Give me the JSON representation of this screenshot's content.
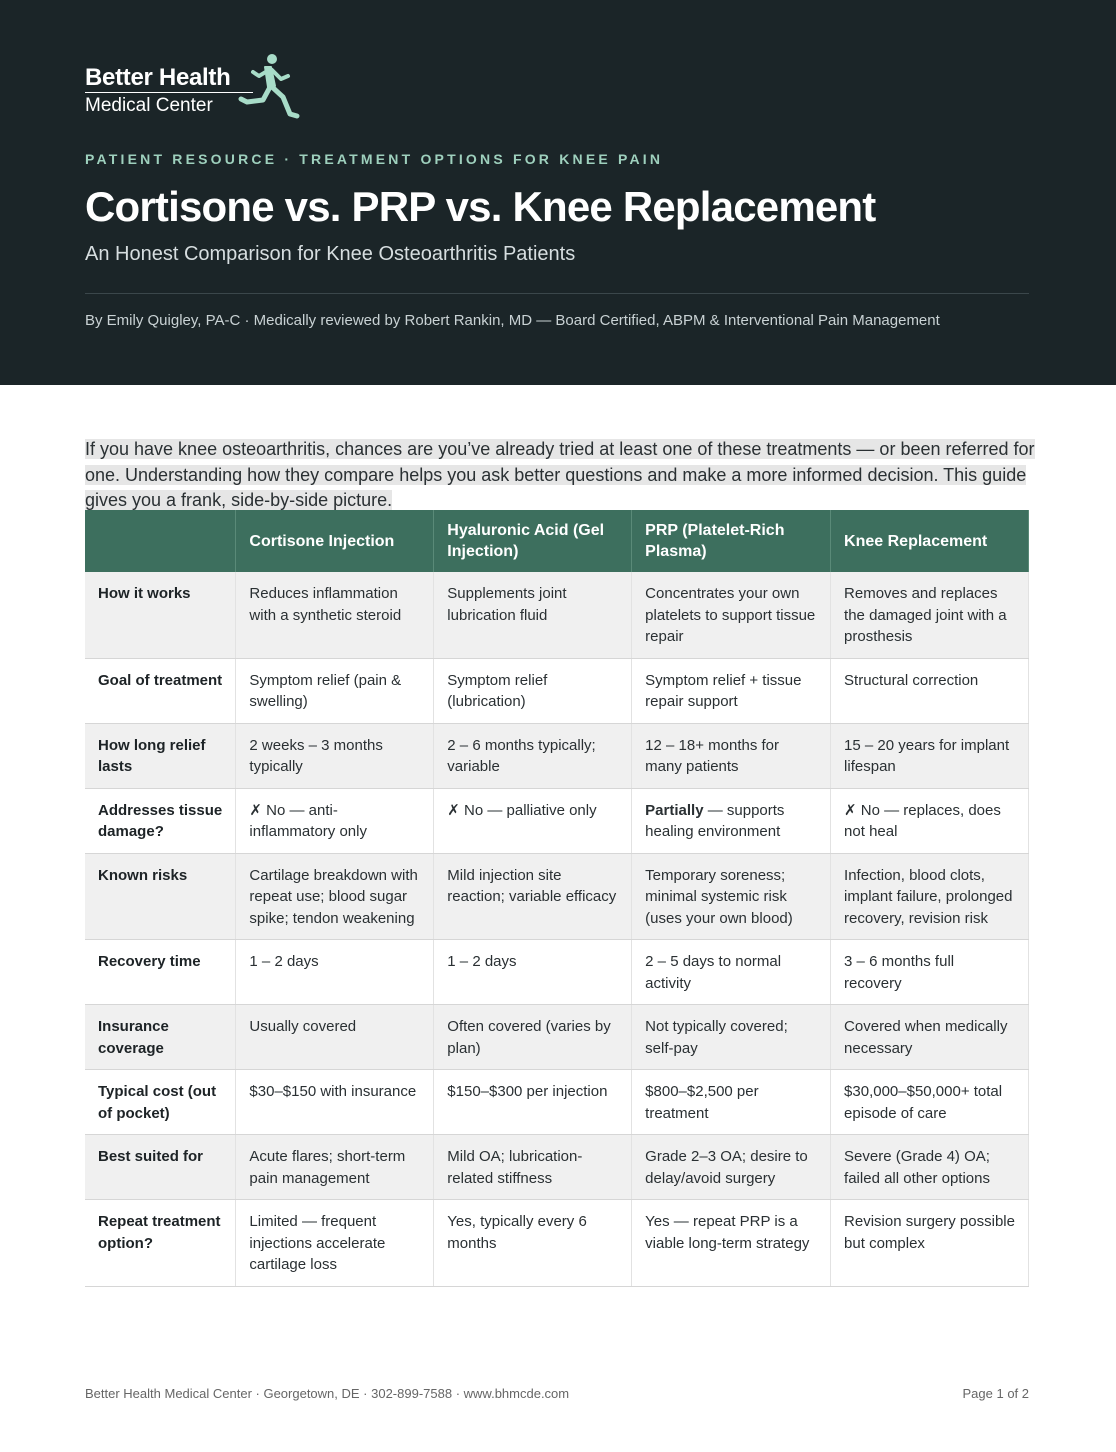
{
  "header": {
    "logo": {
      "name": "Better Health",
      "subtitle": "Medical Center"
    },
    "kicker": "PATIENT RESOURCE · TREATMENT OPTIONS FOR KNEE PAIN",
    "title": "Cortisone vs. PRP vs. Knee Replacement",
    "subtitle": "An Honest Comparison for Knee Osteoarthritis Patients",
    "byline": "By Emily Quigley, PA-C  ·  Medically reviewed by Robert Rankin, MD — Board Certified, ABPM & Interventional Pain Management"
  },
  "intro": "If you have knee osteoarthritis, chances are you’ve already tried at least one of these treatments — or been referred for one. Understanding how they compare helps you ask better questions and make a more informed decision. This guide gives you a frank, side-by-side picture.",
  "table": {
    "columns": [
      "Cortisone Injection",
      "Hyaluronic Acid (Gel Injection)",
      "PRP (Platelet-Rich Plasma)",
      "Knee Replacement"
    ],
    "rows": [
      {
        "label": "How it works",
        "cells": [
          "Reduces inflammation with a synthetic steroid",
          "Supplements joint lubrication fluid",
          "Concentrates your own platelets to support tissue repair",
          "Removes and replaces the damaged joint with a prosthesis"
        ]
      },
      {
        "label": "Goal of treatment",
        "cells": [
          "Symptom relief (pain & swelling)",
          "Symptom relief (lubrication)",
          "Symptom relief + tissue repair support",
          "Structural correction"
        ]
      },
      {
        "label": "How long relief lasts",
        "cells": [
          "2 weeks – 3 months typically",
          "2 – 6 months typically; variable",
          "12 – 18+ months for many patients",
          "15 – 20 years for implant lifespan"
        ]
      },
      {
        "label": "Addresses tissue damage?",
        "cells": [
          "✗ No — anti-inflammatory only",
          "✗ No — palliative only",
          {
            "emphasis": "Partially",
            "text": " — supports healing environment"
          },
          "✗ No — replaces, does not heal"
        ]
      },
      {
        "label": "Known risks",
        "cells": [
          "Cartilage breakdown with repeat use; blood sugar spike; tendon weakening",
          "Mild injection site reaction; variable efficacy",
          "Temporary soreness; minimal systemic risk (uses your own blood)",
          "Infection, blood clots, implant failure, prolonged recovery, revision risk"
        ]
      },
      {
        "label": "Recovery time",
        "cells": [
          "1 – 2 days",
          "1 – 2 days",
          "2 – 5 days to normal activity",
          "3 – 6 months full recovery"
        ]
      },
      {
        "label": "Insurance coverage",
        "cells": [
          "Usually covered",
          "Often covered (varies by plan)",
          "Not typically covered; self-pay",
          "Covered when medically necessary"
        ]
      },
      {
        "label": "Typical cost (out of pocket)",
        "cells": [
          "$30–$150 with insurance",
          "$150–$300 per injection",
          "$800–$2,500 per treatment",
          "$30,000–$50,000+ total episode of care"
        ]
      },
      {
        "label": "Best suited for",
        "cells": [
          "Acute flares; short-term pain management",
          "Mild OA; lubrication-related stiffness",
          "Grade 2–3 OA; desire to delay/avoid surgery",
          "Severe (Grade 4) OA; failed all other options"
        ]
      },
      {
        "label": "Repeat treatment option?",
        "cells": [
          "Limited — frequent injections accelerate cartilage loss",
          "Yes, typically every 6 months",
          "Yes — repeat PRP is a viable long-term strategy",
          "Revision surgery possible but complex"
        ]
      }
    ]
  },
  "footer": {
    "contact": "Better Health Medical Center · Georgetown, DE · 302-899-7588 · www.bhmcde.com",
    "page": "Page 1 of 2"
  }
}
